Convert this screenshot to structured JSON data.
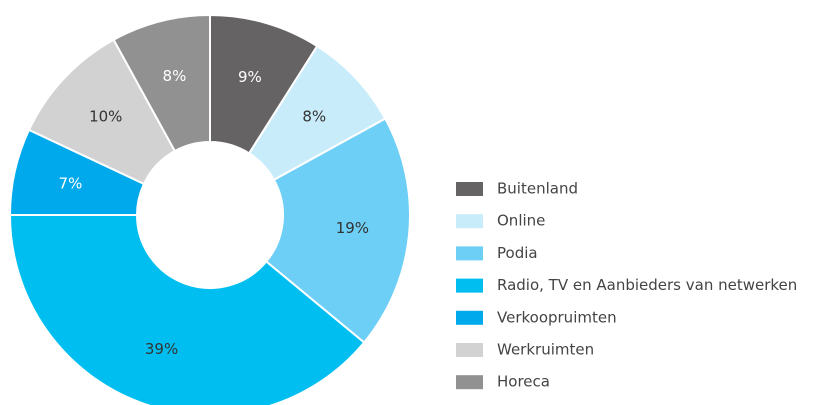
{
  "chart_data": {
    "type": "donut",
    "categories": [
      "Buitenland",
      "Online",
      "Podia",
      "Radio, TV en Aanbieders van netwerken",
      "Verkoopruimten",
      "Werkruimten",
      "Horeca"
    ],
    "values": [
      9,
      8,
      19,
      39,
      7,
      10,
      8
    ],
    "value_labels": [
      "9%",
      "8%",
      "19%",
      "39%",
      "7%",
      "10%",
      "8%"
    ],
    "colors": [
      "#666364",
      "#c9ecfb",
      "#6ecff6",
      "#00bff0",
      "#00a9ec",
      "#d2d2d2",
      "#919191"
    ],
    "label_colors": [
      "#ffffff",
      "#333333",
      "#333333",
      "#333333",
      "#ffffff",
      "#333333",
      "#ffffff"
    ],
    "legend": "right"
  }
}
